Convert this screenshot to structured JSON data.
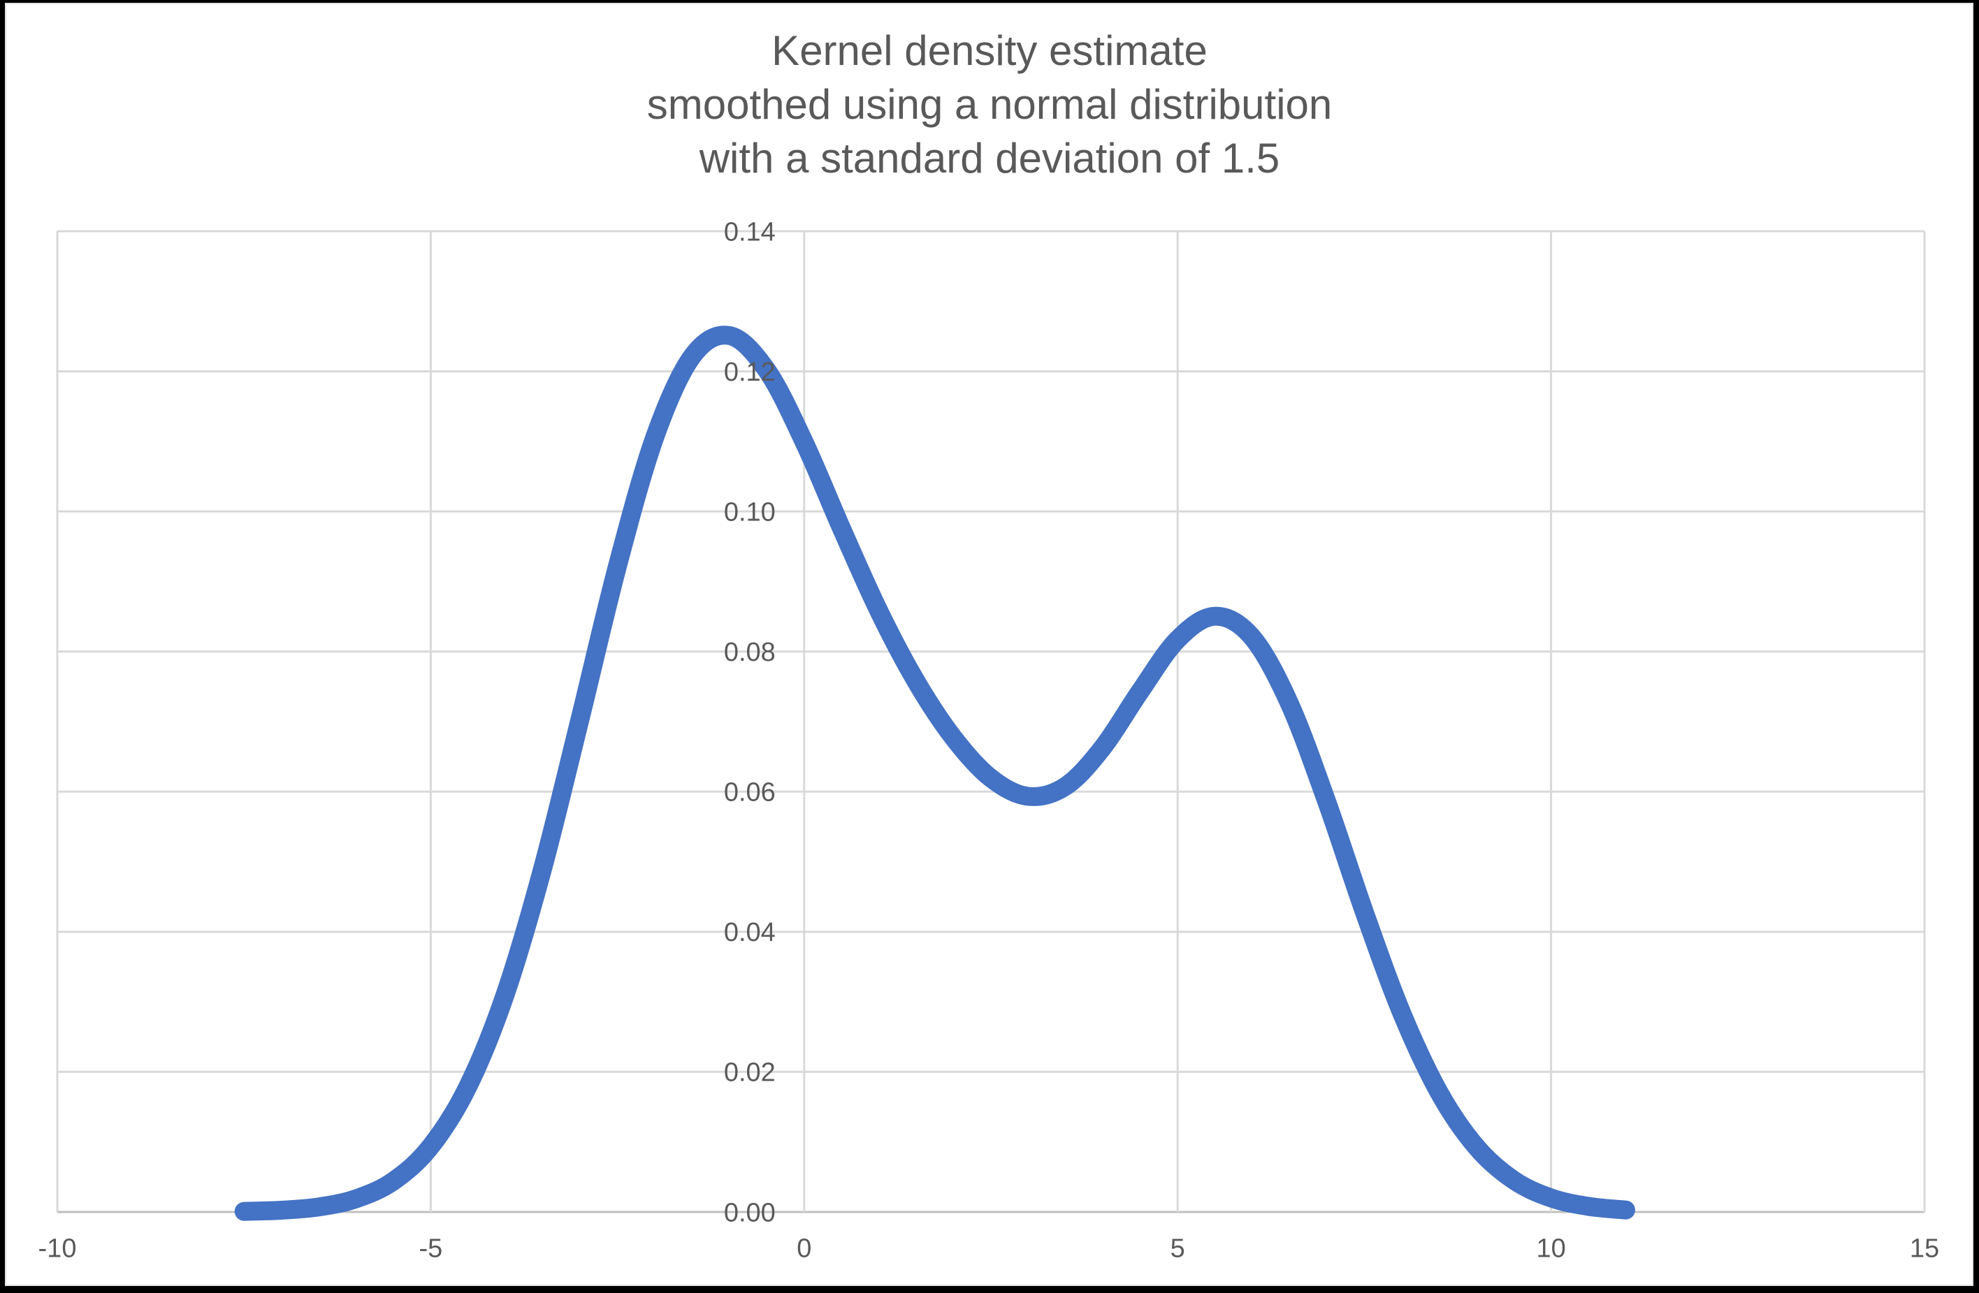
{
  "title": {
    "lines": [
      "Kernel density estimate",
      "smoothed using a normal distribution",
      "with a standard deviation of 1.5"
    ]
  },
  "colors": {
    "curve": "#4472C4",
    "gridline": "#D9D9D9",
    "axis_line": "#BFBFBF",
    "text": "#595959",
    "background": "#FFFFFF",
    "frame": "#000000"
  },
  "chart_data": {
    "type": "line",
    "title": "Kernel density estimate smoothed using a normal distribution with a standard deviation of 1.5",
    "xlabel": "",
    "ylabel": "",
    "xlim": [
      -10,
      15
    ],
    "ylim": [
      0,
      0.14
    ],
    "grid": true,
    "legend": false,
    "x_tick_labels": [
      "-10",
      "-5",
      "0",
      "5",
      "10",
      "15"
    ],
    "x_tick_values": [
      -10,
      -5,
      0,
      5,
      10,
      15
    ],
    "y_tick_labels": [
      "0.00",
      "0.02",
      "0.04",
      "0.06",
      "0.08",
      "0.10",
      "0.12",
      "0.14"
    ],
    "y_tick_values": [
      0,
      0.02,
      0.04,
      0.06,
      0.08,
      0.1,
      0.12,
      0.14
    ],
    "y_axis_position_x": 0,
    "smoothing": {
      "distribution": "normal",
      "standard_deviation": 1.5
    },
    "series": [
      {
        "name": "Kernel density estimate",
        "color": "#4472C4",
        "stroke_width": 27,
        "line_cap": "round",
        "x": [
          -7.5,
          -7.0,
          -6.5,
          -6.0,
          -5.5,
          -5.0,
          -4.5,
          -4.0,
          -3.5,
          -3.0,
          -2.5,
          -2.0,
          -1.5,
          -1.0,
          -0.5,
          0.0,
          0.5,
          1.0,
          1.5,
          2.0,
          2.5,
          3.0,
          3.5,
          4.0,
          4.5,
          5.0,
          5.5,
          6.0,
          6.5,
          7.0,
          7.5,
          8.0,
          8.5,
          9.0,
          9.5,
          10.0,
          10.5,
          11.0
        ],
        "y": [
          8e-05,
          0.00025,
          0.00072,
          0.00188,
          0.00441,
          0.00936,
          0.01795,
          0.03115,
          0.04909,
          0.07043,
          0.0922,
          0.11059,
          0.12213,
          0.1251,
          0.12015,
          0.10989,
          0.09758,
          0.08578,
          0.07572,
          0.06767,
          0.06193,
          0.05933,
          0.06078,
          0.06633,
          0.07435,
          0.08173,
          0.08504,
          0.08202,
          0.07252,
          0.05846,
          0.04282,
          0.02843,
          0.01708,
          0.00928,
          0.00454,
          0.002,
          0.0008,
          0.00028
        ],
        "peaks": [
          {
            "x": -1.05,
            "y": 0.125
          },
          {
            "x": 5.55,
            "y": 0.085
          }
        ],
        "valley": {
          "x": 3.1,
          "y": 0.059
        }
      }
    ]
  }
}
